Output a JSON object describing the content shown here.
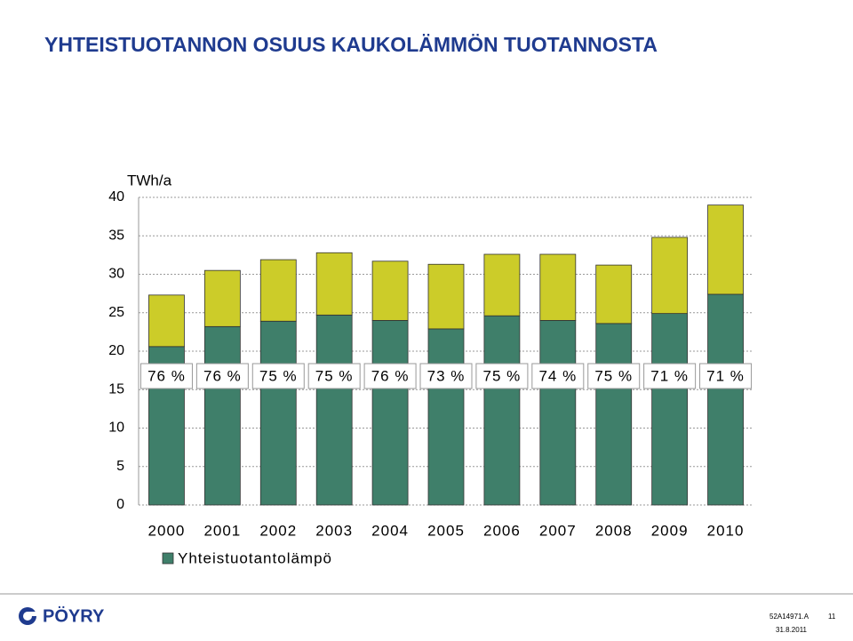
{
  "chart_data": {
    "type": "stacked_bar",
    "title": "YHTEISTUOTANNON OSUUS KAUKOLÄMMÖN TUOTANNOSTA",
    "y_label": "TWh/a",
    "categories": [
      "2000",
      "2001",
      "2002",
      "2003",
      "2004",
      "2005",
      "2006",
      "2007",
      "2008",
      "2009",
      "2010"
    ],
    "series": [
      {
        "name": "Yhteistuotantolämpö",
        "color": "#3f7f6a",
        "values": [
          20.6,
          23.2,
          23.9,
          24.7,
          24.0,
          22.9,
          24.6,
          24.0,
          23.6,
          24.9,
          27.4
        ]
      },
      {
        "color": "#cccc29",
        "values": [
          6.7,
          7.3,
          8.0,
          8.1,
          7.7,
          8.4,
          8.0,
          8.6,
          7.6,
          9.9,
          11.6
        ]
      }
    ],
    "share_labels": [
      "76 %",
      "76 %",
      "75 %",
      "75 %",
      "76 %",
      "73 %",
      "75 %",
      "74 %",
      "75 %",
      "71 %",
      "71 %"
    ],
    "ylim": [
      0,
      40
    ],
    "yticks": [
      0,
      5,
      10,
      15,
      20,
      25,
      30,
      35,
      40
    ],
    "grid": true
  },
  "footer": {
    "logo": "PÖYRY",
    "code": "52A14971.A",
    "page": "11",
    "date": "31.8.2011"
  }
}
